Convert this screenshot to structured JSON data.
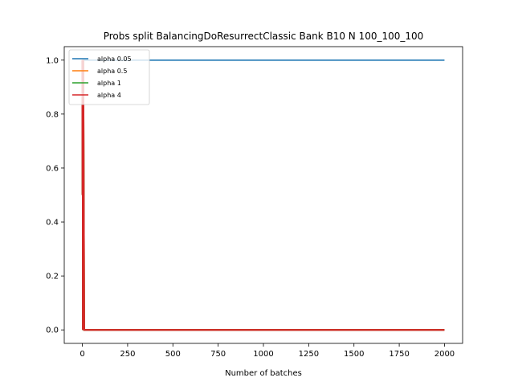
{
  "chart_data": {
    "type": "line",
    "title": "Probs split BalancingDoResurrectClassic Bank B10 N 100_100_100",
    "xlabel": "Number of batches",
    "ylabel": "",
    "xlim": [
      -100,
      2100
    ],
    "ylim": [
      -0.05,
      1.05
    ],
    "xticks": [
      0,
      250,
      500,
      750,
      1000,
      1250,
      1500,
      1750,
      2000
    ],
    "yticks": [
      0.0,
      0.2,
      0.4,
      0.6,
      0.8,
      1.0
    ],
    "xtick_labels": [
      "0",
      "250",
      "500",
      "750",
      "1000",
      "1250",
      "1500",
      "1750",
      "2000"
    ],
    "ytick_labels": [
      "0.0",
      "0.2",
      "0.4",
      "0.6",
      "0.8",
      "1.0"
    ],
    "grid": false,
    "legend": "upper-left",
    "series": [
      {
        "name": "alpha 0.05",
        "color": "#1f77b4",
        "x": [
          0,
          2000
        ],
        "y": [
          1.0,
          1.0
        ]
      },
      {
        "name": "alpha 0.5",
        "color": "#ff7f0e",
        "x": [
          0,
          1,
          2,
          3,
          5,
          10,
          2000
        ],
        "y": [
          1.0,
          0.5,
          0.9,
          0.0,
          1.0,
          0.0,
          0.0
        ]
      },
      {
        "name": "alpha 1",
        "color": "#2ca02c",
        "x": [
          0,
          1,
          2,
          3,
          5,
          10,
          2000
        ],
        "y": [
          1.0,
          0.5,
          0.9,
          0.0,
          1.0,
          0.0,
          0.0
        ]
      },
      {
        "name": "alpha 4",
        "color": "#d62728",
        "x": [
          0,
          1,
          2,
          3,
          5,
          10,
          2000
        ],
        "y": [
          1.0,
          0.5,
          0.9,
          0.0,
          1.0,
          0.0,
          0.0
        ]
      }
    ]
  }
}
